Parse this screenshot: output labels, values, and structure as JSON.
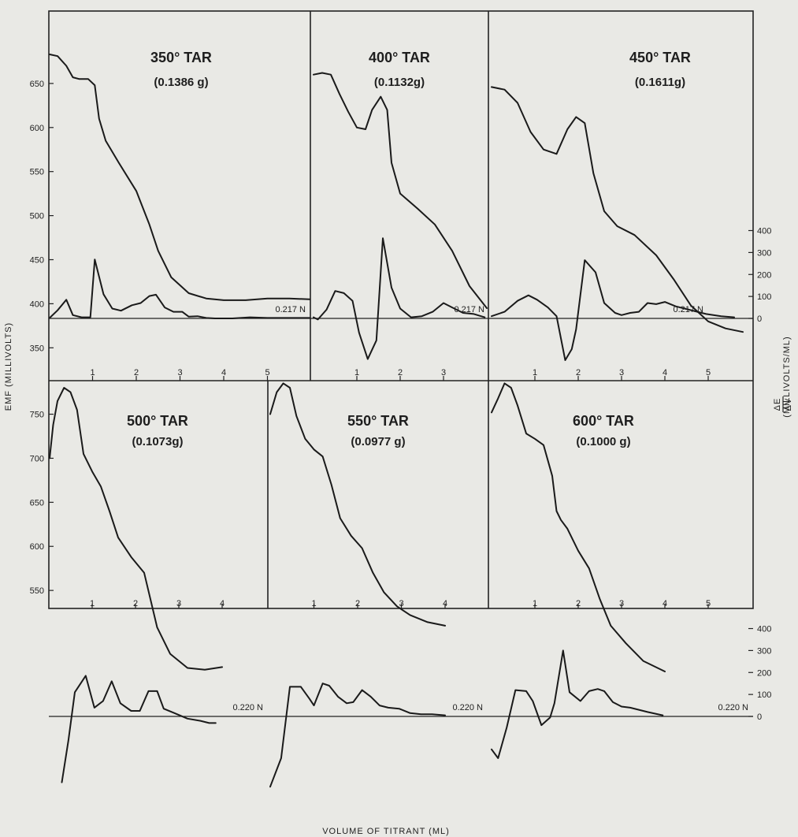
{
  "figure": {
    "y_axis_left": "EMF (MILLIVOLTS)",
    "y_axis_right": "(MILLIVOLTS/ML)",
    "y_axis_right_fraction": {
      "numerator": "ΔE",
      "denominator": "ΔV"
    },
    "x_axis": "VOLUME OF TITRANT (ML)"
  },
  "chart_data": [
    {
      "type": "line",
      "title": "350° TAR",
      "subtitle": "(0.1386 g)",
      "normality": "0.217 N",
      "emf": {
        "x": [
          0,
          0.2,
          0.4,
          0.55,
          0.7,
          0.9,
          1.05,
          1.15,
          1.3,
          1.6,
          2.0,
          2.3,
          2.5,
          2.8,
          3.2,
          3.6,
          4.0,
          4.5,
          5.0,
          5.5,
          6.0
        ],
        "y": [
          683,
          681,
          670,
          657,
          655,
          655,
          648,
          610,
          585,
          560,
          528,
          490,
          460,
          430,
          412,
          406,
          404,
          404,
          406,
          406,
          405
        ]
      },
      "derivative": {
        "x": [
          0,
          0.2,
          0.4,
          0.55,
          0.75,
          0.95,
          1.05,
          1.25,
          1.45,
          1.65,
          1.9,
          2.1,
          2.3,
          2.45,
          2.65,
          2.85,
          3.05,
          3.2,
          3.4,
          3.6,
          3.8,
          4.2,
          4.6,
          5.0,
          5.5,
          6.0
        ],
        "y": [
          2,
          37,
          85,
          15,
          5,
          5,
          268,
          110,
          45,
          35,
          60,
          70,
          102,
          108,
          50,
          30,
          30,
          8,
          10,
          2,
          0,
          0,
          5,
          2,
          2,
          2
        ]
      }
    },
    {
      "type": "line",
      "title": "400° TAR",
      "subtitle": "(0.1132g)",
      "normality": "0.217 N",
      "emf": {
        "x": [
          0,
          0.2,
          0.4,
          0.6,
          0.8,
          1.0,
          1.2,
          1.35,
          1.55,
          1.7,
          1.8,
          2.0,
          2.4,
          2.8,
          3.2,
          3.6,
          4.0
        ],
        "y": [
          660,
          662,
          660,
          638,
          618,
          600,
          598,
          620,
          635,
          620,
          560,
          525,
          508,
          490,
          460,
          420,
          395
        ]
      },
      "derivative": {
        "x": [
          0,
          0.1,
          0.3,
          0.5,
          0.7,
          0.9,
          1.05,
          1.25,
          1.45,
          1.6,
          1.8,
          2.0,
          2.25,
          2.5,
          2.75,
          3.0,
          3.2,
          3.45,
          3.7,
          3.95
        ],
        "y": [
          5,
          -5,
          40,
          125,
          115,
          80,
          -65,
          -185,
          -100,
          365,
          140,
          45,
          5,
          10,
          30,
          70,
          50,
          25,
          20,
          5
        ]
      }
    },
    {
      "type": "line",
      "title": "450° TAR",
      "subtitle": "(0.1611g)",
      "normality": "0.217 N",
      "emf": {
        "x": [
          0,
          0.3,
          0.6,
          0.9,
          1.2,
          1.5,
          1.75,
          1.95,
          2.15,
          2.35,
          2.6,
          2.9,
          3.3,
          3.8,
          4.2,
          4.6,
          5.0,
          5.4,
          5.8
        ],
        "y": [
          646,
          643,
          628,
          595,
          575,
          570,
          598,
          612,
          605,
          548,
          505,
          488,
          478,
          455,
          428,
          398,
          380,
          372,
          368
        ]
      },
      "derivative": {
        "x": [
          0,
          0.3,
          0.6,
          0.85,
          1.05,
          1.3,
          1.5,
          1.7,
          1.85,
          1.95,
          2.15,
          2.4,
          2.6,
          2.85,
          3.0,
          3.2,
          3.4,
          3.6,
          3.8,
          4.0,
          4.25,
          4.55,
          4.95,
          5.3,
          5.6
        ],
        "y": [
          10,
          30,
          80,
          105,
          85,
          50,
          10,
          -190,
          -140,
          -50,
          265,
          210,
          70,
          25,
          15,
          25,
          30,
          70,
          65,
          75,
          55,
          40,
          20,
          10,
          5
        ]
      }
    },
    {
      "type": "line",
      "title": "500° TAR",
      "subtitle": "(0.1073g)",
      "normality": "0.220 N",
      "emf": {
        "x": [
          0,
          0.1,
          0.2,
          0.35,
          0.5,
          0.65,
          0.8,
          1.0,
          1.2,
          1.4,
          1.6,
          1.9,
          2.2,
          2.5,
          2.8,
          3.2,
          3.6,
          4.0
        ],
        "y": [
          700,
          738,
          765,
          780,
          775,
          755,
          705,
          685,
          668,
          640,
          610,
          588,
          570,
          508,
          478,
          462,
          460,
          463
        ]
      },
      "derivative": {
        "x": [
          0.3,
          0.45,
          0.6,
          0.85,
          1.05,
          1.25,
          1.45,
          1.65,
          1.9,
          2.1,
          2.3,
          2.5,
          2.65,
          2.9,
          3.2,
          3.5,
          3.7,
          3.85
        ],
        "y": [
          -300,
          -110,
          110,
          185,
          40,
          70,
          160,
          60,
          25,
          25,
          115,
          115,
          35,
          15,
          -10,
          -20,
          -30,
          -30
        ]
      }
    },
    {
      "type": "line",
      "title": "550° TAR",
      "subtitle": "(0.0977 g)",
      "normality": "0.220 N",
      "emf": {
        "x": [
          0,
          0.15,
          0.3,
          0.45,
          0.6,
          0.8,
          1.0,
          1.2,
          1.4,
          1.6,
          1.85,
          2.1,
          2.35,
          2.6,
          2.9,
          3.2,
          3.6,
          4.0
        ],
        "y": [
          750,
          775,
          785,
          780,
          748,
          722,
          710,
          702,
          670,
          632,
          612,
          598,
          570,
          548,
          532,
          522,
          514,
          510
        ]
      },
      "derivative": {
        "x": [
          0,
          0.25,
          0.45,
          0.7,
          0.9,
          1.0,
          1.2,
          1.35,
          1.55,
          1.75,
          1.9,
          2.1,
          2.3,
          2.5,
          2.7,
          2.95,
          3.2,
          3.45,
          3.7,
          4.0
        ],
        "y": [
          -320,
          -190,
          135,
          135,
          80,
          50,
          150,
          140,
          90,
          60,
          65,
          120,
          90,
          50,
          40,
          35,
          15,
          10,
          10,
          5
        ]
      }
    },
    {
      "type": "line",
      "title": "600° TAR",
      "subtitle": "(0.1000 g)",
      "normality": "0.220 N",
      "emf": {
        "x": [
          0,
          0.15,
          0.3,
          0.45,
          0.6,
          0.8,
          1.0,
          1.2,
          1.4,
          1.5,
          1.6,
          1.75,
          2.0,
          2.25,
          2.5,
          2.75,
          3.1,
          3.5,
          4.0
        ],
        "y": [
          752,
          768,
          785,
          780,
          760,
          728,
          722,
          715,
          680,
          640,
          630,
          620,
          595,
          575,
          540,
          510,
          490,
          470,
          458
        ]
      },
      "derivative": {
        "x": [
          0,
          0.15,
          0.35,
          0.55,
          0.8,
          0.95,
          1.15,
          1.35,
          1.45,
          1.65,
          1.8,
          2.05,
          2.25,
          2.45,
          2.6,
          2.8,
          3.0,
          3.2,
          3.4,
          3.6,
          3.95
        ],
        "y": [
          -150,
          -190,
          -50,
          120,
          115,
          70,
          -40,
          -5,
          60,
          300,
          110,
          70,
          115,
          125,
          115,
          65,
          45,
          40,
          30,
          20,
          5
        ]
      }
    }
  ]
}
